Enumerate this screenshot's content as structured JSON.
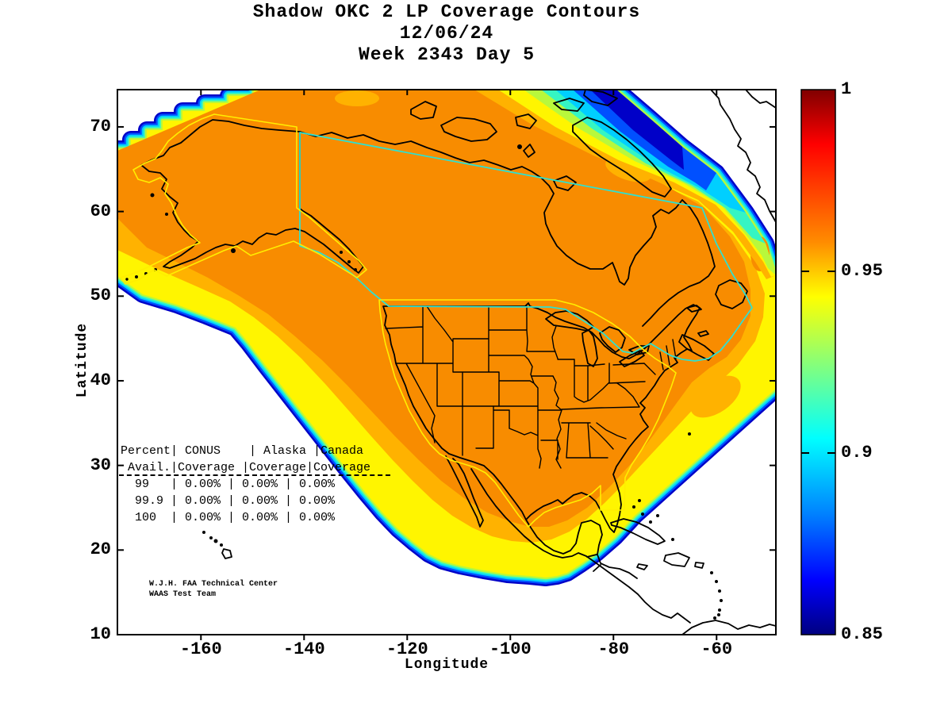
{
  "title": {
    "line1": "Shadow OKC 2 LP Coverage Contours",
    "line2": "12/06/24",
    "line3": "Week 2343 Day 5"
  },
  "axes": {
    "x": {
      "label": "Longitude",
      "ticks": [
        "-160",
        "-140",
        "-120",
        "-100",
        "-80",
        "-60"
      ],
      "tick_values": [
        -160,
        -140,
        -120,
        -100,
        -80,
        -60
      ],
      "range": [
        -176.2,
        -48.5
      ]
    },
    "y": {
      "label": "Latitude",
      "ticks": [
        "70",
        "60",
        "50",
        "40",
        "30",
        "20",
        "10"
      ],
      "tick_values": [
        70,
        60,
        50,
        40,
        30,
        20,
        10
      ],
      "range": [
        10,
        74.4
      ]
    }
  },
  "colorbar": {
    "min": 0.85,
    "max": 1.0,
    "labels": [
      "1",
      "0.95",
      "0.9",
      "0.85"
    ],
    "tick_values": [
      1,
      0.95,
      0.9,
      0.85
    ],
    "inner_tick_values": [
      0.95,
      0.9
    ],
    "colormap": "jet"
  },
  "overlay_table": {
    "lines": [
      "Percent| CONUS    | Alaska |Canada",
      " Avail.|Coverage |Coverage|Coverage",
      "  99   | 0.00% | 0.00% | 0.00%",
      "  99.9 | 0.00% | 0.00% | 0.00%",
      "  100  | 0.00% | 0.00% | 0.00%"
    ],
    "columns": [
      "Percent Avail.",
      "CONUS Coverage",
      "Alaska Coverage",
      "Canada Coverage"
    ],
    "rows": [
      {
        "avail": "99",
        "conus": "0.00%",
        "alaska": "0.00%",
        "canada": "0.00%"
      },
      {
        "avail": "99.9",
        "conus": "0.00%",
        "alaska": "0.00%",
        "canada": "0.00%"
      },
      {
        "avail": "100",
        "conus": "0.00%",
        "alaska": "0.00%",
        "canada": "0.00%"
      }
    ]
  },
  "credit": {
    "line1": "W.J.H. FAA Technical Center",
    "line2": "WAAS Test Team"
  },
  "colors": {
    "orange_core": "#F88C00",
    "amber": "#FFB200",
    "yellow": "#FFF500",
    "yellow_green": "#B8F83C",
    "teal_green": "#35F5C3",
    "cyan": "#00CFFF",
    "blue": "#0050FF",
    "navy": "#0000C8",
    "canada_boundary_line": "#2FE0D0",
    "region_boundary_line": "#FFEE00",
    "coastline": "#000000"
  },
  "chart_data": {
    "type": "heatmap",
    "subtype": "filled-contour coverage map of North America",
    "title": "Shadow OKC 2 LP Coverage Contours",
    "date": "12/06/24",
    "gps_week": "2343",
    "gps_day": "5",
    "xlabel": "Longitude",
    "ylabel": "Latitude",
    "xlim": [
      -176.2,
      -48.5
    ],
    "ylim": [
      10,
      74.4
    ],
    "xticks": [
      -160,
      -140,
      -120,
      -100,
      -80,
      -60
    ],
    "yticks": [
      10,
      20,
      30,
      40,
      50,
      60,
      70
    ],
    "colorbar": {
      "min": 0.85,
      "max": 1.0,
      "ticks": [
        0.85,
        0.9,
        0.95,
        1.0
      ],
      "colormap": "jet"
    },
    "contour_description": "Coverage >=0.95 (orange) over nearly all of Alaska, Canada and CONUS; yellow-to-blue fringe (0.95 down to 0.85) along the Pacific southwest edge, Gulf of Mexico / Caribbean southeast edge, and a degraded yellow-green-cyan-blue band over Baffin Bay toward Greenland; no coverage (white) beyond the fringe",
    "coverage_table": {
      "columns": [
        "Percent Avail.",
        "CONUS Coverage",
        "Alaska Coverage",
        "Canada Coverage"
      ],
      "rows": [
        [
          "99",
          "0.00%",
          "0.00%",
          "0.00%"
        ],
        [
          "99.9",
          "0.00%",
          "0.00%",
          "0.00%"
        ],
        [
          "100",
          "0.00%",
          "0.00%",
          "0.00%"
        ]
      ]
    },
    "annotations": [
      "W.J.H. FAA Technical Center",
      "WAAS Test Team"
    ],
    "legend_position": "right colorbar",
    "grid": false
  }
}
